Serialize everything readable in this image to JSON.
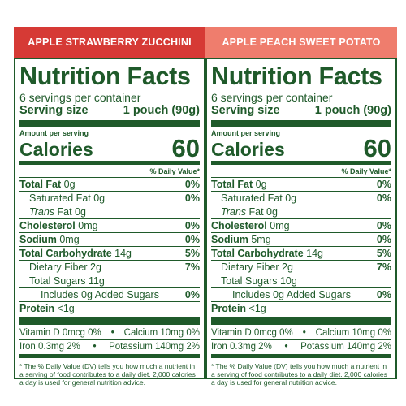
{
  "colors": {
    "text": "#1f5a2a",
    "banner_0": "#d63a35",
    "banner_1": "#ef7d6d",
    "background": "#ffffff"
  },
  "panels": [
    {
      "banner": "APPLE STRAWBERRY ZUCCHINI",
      "title": "Nutrition Facts",
      "servings": "6 servings per container",
      "serving_size_label": "Serving size",
      "serving_size_value": "1 pouch (90g)",
      "amount_per_serving": "Amount per serving",
      "calories_label": "Calories",
      "calories_value": "60",
      "dv_header": "% Daily Value*",
      "total_fat_label": "Total Fat",
      "total_fat_amt": "0g",
      "total_fat_dv": "0%",
      "sat_fat_label": "Saturated Fat 0g",
      "sat_fat_dv": "0%",
      "trans_label": "Trans",
      "trans_amt": "Fat 0g",
      "cholesterol_label": "Cholesterol",
      "cholesterol_amt": "0mg",
      "cholesterol_dv": "0%",
      "sodium_label": "Sodium",
      "sodium_amt": "0mg",
      "sodium_dv": "0%",
      "carb_label": "Total Carbohydrate",
      "carb_amt": "14g",
      "carb_dv": "5%",
      "fiber_label": "Dietary Fiber 2g",
      "fiber_dv": "7%",
      "sugars_label": "Total Sugars 11g",
      "added_sugars_label": "Includes 0g Added Sugars",
      "added_sugars_dv": "0%",
      "protein_label": "Protein",
      "protein_amt": "<1g",
      "vit_d": "Vitamin D 0mcg 0%",
      "calcium": "Calcium 10mg 0%",
      "iron": "Iron 0.3mg 2%",
      "potassium": "Potassium 140mg 2%",
      "bullet": "•",
      "footnote": "* The % Daily Value (DV) tells you how much a nutrient in a serving of food contributes to a daily diet. 2,000 calories a day is used for general nutrition advice."
    },
    {
      "banner": "APPLE PEACH SWEET POTATO",
      "title": "Nutrition Facts",
      "servings": "6 servings per container",
      "serving_size_label": "Serving size",
      "serving_size_value": "1 pouch (90g)",
      "amount_per_serving": "Amount per serving",
      "calories_label": "Calories",
      "calories_value": "60",
      "dv_header": "% Daily Value*",
      "total_fat_label": "Total Fat",
      "total_fat_amt": "0g",
      "total_fat_dv": "0%",
      "sat_fat_label": "Saturated Fat 0g",
      "sat_fat_dv": "0%",
      "trans_label": "Trans",
      "trans_amt": "Fat 0g",
      "cholesterol_label": "Cholesterol",
      "cholesterol_amt": "0mg",
      "cholesterol_dv": "0%",
      "sodium_label": "Sodium",
      "sodium_amt": "5mg",
      "sodium_dv": "0%",
      "carb_label": "Total Carbohydrate",
      "carb_amt": "14g",
      "carb_dv": "5%",
      "fiber_label": "Dietary Fiber 2g",
      "fiber_dv": "7%",
      "sugars_label": "Total Sugars 10g",
      "added_sugars_label": "Includes 0g Added Sugars",
      "added_sugars_dv": "0%",
      "protein_label": "Protein",
      "protein_amt": "<1g",
      "vit_d": "Vitamin D 0mcg 0%",
      "calcium": "Calcium 10mg 0%",
      "iron": "Iron 0.3mg 2%",
      "potassium": "Potassium 140mg 2%",
      "bullet": "•",
      "footnote": "* The % Daily Value (DV) tells you how much a nutrient in a serving of food contributes to a daily diet. 2,000 calories a day is used for general nutrition advice."
    }
  ]
}
